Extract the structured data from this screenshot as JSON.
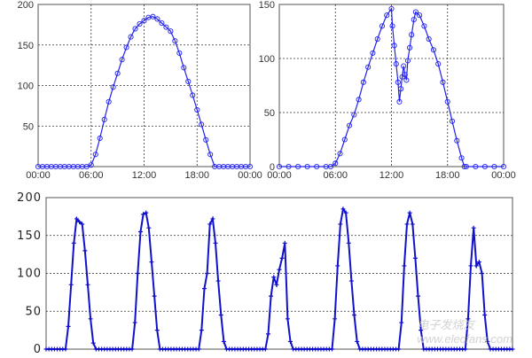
{
  "chart_data": [
    {
      "type": "line",
      "marker": "circle",
      "color": "#2222ee",
      "grid": true,
      "xlabel": "",
      "ylabel": "",
      "xlim": [
        "00:00",
        "24:00"
      ],
      "ylim": [
        0,
        200
      ],
      "yticks": [
        "50",
        "100",
        "150",
        "200"
      ],
      "yticks_values": [
        50,
        100,
        150,
        200
      ],
      "xticks": [
        "00:00",
        "06:00",
        "12:00",
        "18:00",
        "00:00"
      ],
      "x_hours": [
        0,
        0.5,
        1,
        1.5,
        2,
        2.5,
        3,
        3.5,
        4,
        4.5,
        5,
        5.5,
        6,
        6.5,
        7,
        7.5,
        8,
        8.5,
        9,
        9.5,
        10,
        10.5,
        11,
        11.5,
        12,
        12.5,
        13,
        13.5,
        14,
        14.5,
        15,
        15.5,
        16,
        16.5,
        17,
        17.5,
        18,
        18.5,
        19,
        19.5,
        20,
        20.5,
        21,
        21.5,
        22,
        22.5,
        23,
        23.5,
        24
      ],
      "values": [
        0,
        0,
        0,
        0,
        0,
        0,
        0,
        0,
        0,
        0,
        0,
        0,
        2,
        15,
        35,
        58,
        80,
        98,
        115,
        132,
        147,
        160,
        170,
        176,
        180,
        184,
        185,
        182,
        177,
        172,
        167,
        155,
        140,
        122,
        105,
        88,
        70,
        52,
        33,
        15,
        0,
        0,
        0,
        0,
        0,
        0,
        0,
        0,
        0
      ]
    },
    {
      "type": "line",
      "marker": "circle",
      "color": "#2222ee",
      "grid": true,
      "xlabel": "",
      "ylabel": "",
      "xlim": [
        "00:00",
        "24:00"
      ],
      "ylim": [
        0,
        150
      ],
      "yticks": [
        "0",
        "50",
        "100",
        "150"
      ],
      "yticks_values": [
        0,
        50,
        100,
        150
      ],
      "xticks": [
        "00:00",
        "06:00",
        "12:00",
        "18:00",
        "00:00"
      ],
      "x_hours": [
        0,
        1,
        2,
        3,
        4,
        5,
        5.5,
        6,
        6.5,
        7,
        7.5,
        8,
        8.5,
        9,
        9.5,
        10,
        10.5,
        11,
        11.5,
        12,
        12.1,
        12.3,
        12.5,
        12.7,
        12.85,
        13,
        13.15,
        13.3,
        13.45,
        13.6,
        13.75,
        13.95,
        14.15,
        14.4,
        14.6,
        15,
        15.5,
        16,
        16.5,
        17,
        17.5,
        18,
        18.5,
        19,
        19.5,
        19.8,
        20,
        21,
        22,
        23,
        24
      ],
      "values": [
        0,
        0,
        0,
        0,
        0,
        0,
        0,
        3,
        12,
        25,
        38,
        48,
        62,
        78,
        92,
        105,
        118,
        130,
        140,
        146,
        130,
        112,
        95,
        78,
        60,
        72,
        83,
        93,
        85,
        80,
        98,
        110,
        122,
        136,
        143,
        140,
        130,
        118,
        108,
        95,
        78,
        60,
        42,
        24,
        8,
        0,
        0,
        0,
        0,
        0,
        0
      ]
    },
    {
      "type": "line",
      "marker": "plus",
      "color": "#1111cc",
      "grid": true,
      "xlabel": "",
      "ylabel": "",
      "ylim": [
        0,
        200
      ],
      "yticks": [
        "0",
        "50",
        "100",
        "150",
        "200"
      ],
      "yticks_values": [
        0,
        50,
        100,
        150,
        200
      ],
      "days": 7,
      "hourly_values": [
        [
          0,
          0,
          0,
          0,
          0,
          0,
          0,
          0,
          30,
          85,
          140,
          172,
          168,
          165,
          130,
          85,
          40,
          8,
          0,
          0,
          0,
          0,
          0,
          0
        ],
        [
          0,
          0,
          0,
          0,
          0,
          0,
          0,
          0,
          35,
          100,
          155,
          178,
          180,
          160,
          115,
          70,
          25,
          0,
          0,
          0,
          0,
          0,
          0,
          0
        ],
        [
          0,
          0,
          0,
          0,
          0,
          0,
          0,
          0,
          25,
          80,
          100,
          165,
          172,
          140,
          90,
          45,
          10,
          0,
          0,
          0,
          0,
          0,
          0,
          0
        ],
        [
          0,
          0,
          0,
          0,
          0,
          0,
          0,
          0,
          20,
          70,
          95,
          85,
          105,
          120,
          140,
          40,
          10,
          0,
          0,
          0,
          0,
          0,
          0,
          0
        ],
        [
          0,
          0,
          0,
          0,
          0,
          0,
          0,
          0,
          40,
          110,
          165,
          185,
          180,
          140,
          90,
          45,
          10,
          0,
          0,
          0,
          0,
          0,
          0,
          0
        ],
        [
          0,
          0,
          0,
          0,
          0,
          0,
          0,
          0,
          35,
          110,
          165,
          180,
          165,
          120,
          70,
          25,
          0,
          0,
          0,
          0,
          0,
          0,
          0,
          0
        ],
        [
          0,
          0,
          0,
          0,
          0,
          0,
          0,
          0,
          40,
          110,
          160,
          110,
          115,
          100,
          45,
          10,
          0,
          0,
          0,
          0,
          0,
          0,
          0,
          0
        ]
      ]
    }
  ],
  "watermark": "电子发烧友 www.elecfans.com"
}
